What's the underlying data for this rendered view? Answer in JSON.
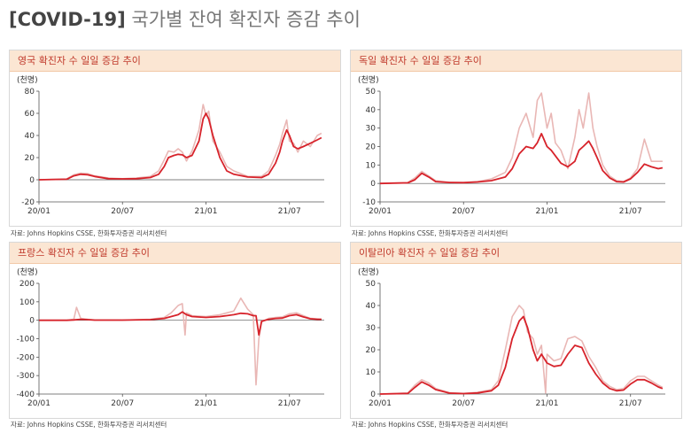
{
  "page": {
    "title_bracket": "[COVID-19]",
    "title_rest": " 국가별 잔여 확진자 증감 추이"
  },
  "colors": {
    "line": "#d7232b",
    "daily": "#e9b7b5",
    "header_bg": "#fbe6d3",
    "header_text": "#c0392b"
  },
  "source_text": "자료: Johns Hopkins CSSE, 한화투자증권 리서치센터",
  "chart_data": [
    {
      "id": "uk",
      "type": "line",
      "title": "영국 확진자 수 일일 증감 추이",
      "unit_label": "(천명)",
      "ylim": [
        -20,
        80
      ],
      "yticks": [
        -20,
        0,
        20,
        40,
        60,
        80
      ],
      "xlim": [
        0,
        20.5
      ],
      "xticks": [
        {
          "x": 0,
          "label": "20/01"
        },
        {
          "x": 6,
          "label": "20/07"
        },
        {
          "x": 12,
          "label": "21/01"
        },
        {
          "x": 18,
          "label": "21/07"
        }
      ],
      "series": [
        {
          "kind": "avg",
          "x": [
            0,
            2.0,
            2.5,
            3.0,
            3.5,
            4.0,
            5.0,
            6.0,
            7.0,
            8.0,
            8.6,
            9.0,
            9.3,
            9.7,
            10.0,
            10.3,
            10.6,
            11.0,
            11.5,
            11.8,
            12.0,
            12.2,
            12.5,
            13.0,
            13.5,
            14.0,
            15.0,
            16.0,
            16.5,
            17.0,
            17.3,
            17.5,
            17.8,
            18.0,
            18.3,
            18.6,
            19.0,
            19.5,
            20.0,
            20.3
          ],
          "y": [
            0,
            0.5,
            3.5,
            5.0,
            4.5,
            3.0,
            1.0,
            0.8,
            1.0,
            2.0,
            5.0,
            12.0,
            20.0,
            22.0,
            23.0,
            22.5,
            20.0,
            22.0,
            35.0,
            55.0,
            60.0,
            55.0,
            40.0,
            20.0,
            8.0,
            5.0,
            2.5,
            2.0,
            5.0,
            15.0,
            25.0,
            35.0,
            45.0,
            40.0,
            30.0,
            28.0,
            30.0,
            33.0,
            36.0,
            38.0
          ]
        },
        {
          "kind": "daily",
          "x": [
            0,
            2.0,
            2.5,
            3.0,
            3.5,
            4.0,
            5.0,
            6.0,
            7.0,
            8.0,
            8.6,
            9.0,
            9.3,
            9.7,
            10.0,
            10.3,
            10.6,
            11.0,
            11.5,
            11.8,
            12.0,
            12.2,
            12.5,
            13.0,
            13.5,
            14.0,
            15.0,
            16.0,
            16.5,
            17.0,
            17.3,
            17.5,
            17.8,
            18.0,
            18.3,
            18.6,
            19.0,
            19.5,
            20.0,
            20.3
          ],
          "y": [
            0,
            0.8,
            4.5,
            6.0,
            5.5,
            3.5,
            1.5,
            1.0,
            1.5,
            3.0,
            8.0,
            18.0,
            26.0,
            25.0,
            28.0,
            25.0,
            17.0,
            26.0,
            45.0,
            68.0,
            58.0,
            62.0,
            35.0,
            25.0,
            12.0,
            8.0,
            3.0,
            3.0,
            8.0,
            22.0,
            32.0,
            42.0,
            54.0,
            35.0,
            33.0,
            25.0,
            35.0,
            30.0,
            40.0,
            42.0
          ]
        }
      ]
    },
    {
      "id": "de",
      "type": "line",
      "title": "독일 확진자 수 일일 증감 추이",
      "unit_label": "(천명)",
      "ylim": [
        -10,
        50
      ],
      "yticks": [
        -10,
        0,
        10,
        20,
        30,
        40,
        50
      ],
      "xlim": [
        0,
        20.5
      ],
      "xticks": [
        {
          "x": 0,
          "label": "20/01"
        },
        {
          "x": 6,
          "label": "20/07"
        },
        {
          "x": 12,
          "label": "21/01"
        },
        {
          "x": 18,
          "label": "21/07"
        }
      ],
      "series": [
        {
          "kind": "avg",
          "x": [
            0,
            2.0,
            2.5,
            3.0,
            3.5,
            4.0,
            5.0,
            6.0,
            7.0,
            8.0,
            9.0,
            9.5,
            10.0,
            10.5,
            11.0,
            11.3,
            11.6,
            12.0,
            12.3,
            12.6,
            13.0,
            13.5,
            14.0,
            14.3,
            14.6,
            15.0,
            15.3,
            15.6,
            16.0,
            16.5,
            17.0,
            17.5,
            18.0,
            18.5,
            19.0,
            19.5,
            20.0,
            20.3
          ],
          "y": [
            0,
            0.3,
            2.0,
            5.5,
            3.5,
            1.0,
            0.5,
            0.4,
            0.8,
            1.5,
            3.5,
            8.0,
            16.0,
            20.0,
            19.0,
            22.0,
            27.0,
            20.0,
            18.0,
            15.0,
            11.0,
            9.0,
            12.0,
            18.0,
            20.0,
            23.0,
            19.0,
            14.0,
            7.0,
            3.0,
            1.0,
            0.8,
            2.5,
            6.0,
            10.5,
            9.0,
            8.0,
            8.5
          ]
        },
        {
          "kind": "daily",
          "x": [
            0,
            2.0,
            2.5,
            3.0,
            3.5,
            4.0,
            5.0,
            6.0,
            7.0,
            8.0,
            9.0,
            9.5,
            10.0,
            10.5,
            11.0,
            11.3,
            11.6,
            12.0,
            12.3,
            12.6,
            13.0,
            13.5,
            14.0,
            14.3,
            14.6,
            15.0,
            15.3,
            15.6,
            16.0,
            16.5,
            17.0,
            17.5,
            18.0,
            18.5,
            19.0,
            19.5,
            20.0,
            20.3
          ],
          "y": [
            0,
            0.5,
            3.0,
            6.5,
            4.0,
            1.5,
            0.6,
            0.5,
            1.0,
            2.5,
            6.0,
            14.0,
            30.0,
            38.0,
            25.0,
            45.0,
            49.0,
            30.0,
            38.0,
            22.0,
            18.0,
            8.0,
            25.0,
            40.0,
            30.0,
            49.0,
            30.0,
            20.0,
            10.0,
            4.0,
            1.5,
            1.0,
            3.0,
            8.0,
            24.0,
            12.0,
            12.0,
            12.0
          ]
        }
      ]
    },
    {
      "id": "fr",
      "type": "line",
      "title": "프랑스 확진자 수 일일 증감 추이",
      "unit_label": "(천명)",
      "ylim": [
        -400,
        200
      ],
      "yticks": [
        -400,
        -300,
        -200,
        -100,
        0,
        100,
        200
      ],
      "xlim": [
        0,
        20.5
      ],
      "xticks": [
        {
          "x": 0,
          "label": "20/01"
        },
        {
          "x": 6,
          "label": "20/07"
        },
        {
          "x": 12,
          "label": "21/01"
        },
        {
          "x": 18,
          "label": "21/07"
        }
      ],
      "series": [
        {
          "kind": "avg",
          "x": [
            0,
            2.0,
            2.5,
            3.0,
            3.5,
            4.0,
            6.0,
            8.0,
            9.0,
            9.5,
            10.0,
            10.3,
            10.6,
            11.0,
            12.0,
            13.0,
            14.0,
            14.5,
            15.0,
            15.4,
            15.6,
            15.8,
            16.0,
            16.5,
            17.0,
            17.5,
            18.0,
            18.5,
            19.0,
            19.5,
            20.0,
            20.3
          ],
          "y": [
            0,
            0,
            2,
            5,
            3,
            1,
            1,
            3,
            10,
            20,
            30,
            45,
            30,
            20,
            15,
            20,
            30,
            38,
            35,
            25,
            25,
            -80,
            -5,
            5,
            10,
            12,
            25,
            30,
            18,
            8,
            5,
            5
          ]
        },
        {
          "kind": "daily",
          "x": [
            0,
            2.0,
            2.5,
            2.7,
            3.0,
            3.5,
            4.0,
            6.0,
            8.0,
            9.0,
            9.5,
            10.0,
            10.3,
            10.5,
            10.6,
            11.0,
            12.0,
            13.0,
            14.0,
            14.5,
            15.0,
            15.4,
            15.6,
            15.8,
            16.0,
            16.5,
            17.0,
            17.5,
            18.0,
            18.5,
            19.0,
            19.5,
            20.0,
            20.3
          ],
          "y": [
            0,
            0,
            5,
            70,
            10,
            5,
            2,
            1,
            5,
            15,
            40,
            80,
            90,
            -80,
            40,
            25,
            20,
            30,
            50,
            120,
            60,
            30,
            -350,
            -100,
            -10,
            10,
            15,
            18,
            35,
            40,
            25,
            10,
            8,
            6
          ]
        }
      ]
    },
    {
      "id": "it",
      "type": "line",
      "title": "이탈리아 확진자 수 일일 증감 추이",
      "unit_label": "(천명)",
      "ylim": [
        0,
        50
      ],
      "yticks": [
        0,
        10,
        20,
        30,
        40,
        50
      ],
      "xlim": [
        0,
        20.5
      ],
      "xticks": [
        {
          "x": 0,
          "label": "20/01"
        },
        {
          "x": 6,
          "label": "20/07"
        },
        {
          "x": 12,
          "label": "21/01"
        },
        {
          "x": 18,
          "label": "21/07"
        }
      ],
      "series": [
        {
          "kind": "avg",
          "x": [
            0,
            2.0,
            2.5,
            3.0,
            3.5,
            4.0,
            5.0,
            6.0,
            7.0,
            8.0,
            8.5,
            9.0,
            9.5,
            10.0,
            10.3,
            10.6,
            11.0,
            11.3,
            11.6,
            12.0,
            12.5,
            13.0,
            13.5,
            14.0,
            14.5,
            15.0,
            15.5,
            16.0,
            16.5,
            17.0,
            17.5,
            18.0,
            18.5,
            19.0,
            19.5,
            20.0,
            20.3
          ],
          "y": [
            0,
            0.3,
            3.0,
            5.5,
            4.0,
            2.0,
            0.4,
            0.2,
            0.5,
            1.5,
            4.0,
            12.0,
            25.0,
            33.0,
            35.0,
            30.0,
            20.0,
            15.0,
            18.0,
            14.0,
            12.5,
            13.0,
            18.0,
            22.0,
            21.0,
            14.0,
            9.0,
            5.0,
            2.5,
            1.5,
            1.8,
            4.5,
            6.5,
            6.5,
            5.0,
            3.2,
            2.5
          ]
        },
        {
          "kind": "daily",
          "x": [
            0,
            2.0,
            2.5,
            3.0,
            3.5,
            4.0,
            5.0,
            6.0,
            7.0,
            8.0,
            8.5,
            9.0,
            9.5,
            10.0,
            10.3,
            10.6,
            11.0,
            11.3,
            11.6,
            11.9,
            12.0,
            12.5,
            13.0,
            13.5,
            14.0,
            14.5,
            15.0,
            15.5,
            16.0,
            16.5,
            17.0,
            17.5,
            18.0,
            18.5,
            19.0,
            19.5,
            20.0,
            20.3
          ],
          "y": [
            0,
            0.5,
            4.0,
            6.5,
            5.0,
            2.5,
            0.6,
            0.3,
            0.8,
            2.0,
            6.0,
            20.0,
            35.0,
            40.0,
            38.0,
            28.0,
            25.0,
            18.0,
            22.0,
            0.5,
            18.0,
            15.0,
            16.0,
            25.0,
            26.0,
            24.0,
            17.0,
            12.0,
            6.0,
            3.5,
            2.0,
            2.5,
            6.0,
            8.0,
            8.0,
            6.0,
            4.0,
            3.0
          ]
        }
      ]
    }
  ]
}
